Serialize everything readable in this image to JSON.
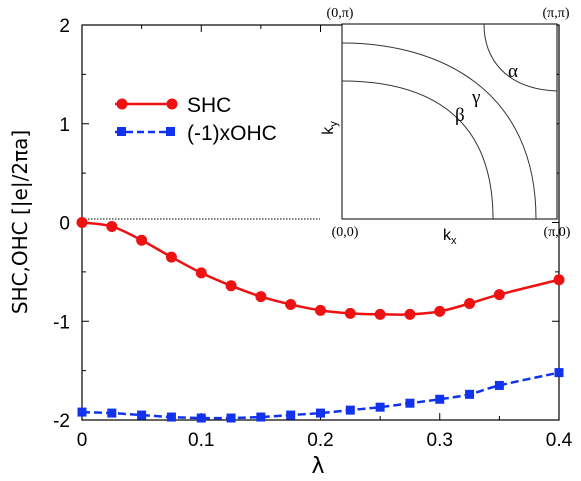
{
  "chart_data": {
    "type": "line",
    "xlabel": "λ",
    "ylabel": "SHC,OHC [|e|/2πa]",
    "xlim": [
      0,
      0.4
    ],
    "ylim": [
      -2,
      2
    ],
    "x_ticks": [
      "0",
      "0.1",
      "0.2",
      "0.3",
      "0.4"
    ],
    "x_tick_values": [
      0,
      0.1,
      0.2,
      0.3,
      0.4
    ],
    "y_ticks": [
      "2",
      "1",
      "0",
      "-1",
      "-2"
    ],
    "y_tick_values": [
      2,
      1,
      0,
      -1,
      -2
    ],
    "zero_line": true,
    "legend_position": "upper-left",
    "x": [
      0,
      0.025,
      0.05,
      0.075,
      0.1,
      0.125,
      0.15,
      0.175,
      0.2,
      0.225,
      0.25,
      0.275,
      0.3,
      0.325,
      0.35,
      0.4
    ],
    "series": [
      {
        "name": "SHC",
        "color": "#ee1111",
        "marker": "circle",
        "line": "solid",
        "values": [
          0.0,
          -0.04,
          -0.18,
          -0.35,
          -0.51,
          -0.64,
          -0.75,
          -0.83,
          -0.89,
          -0.92,
          -0.93,
          -0.93,
          -0.9,
          -0.82,
          -0.73,
          -0.58
        ]
      },
      {
        "name": "(-1)xOHC",
        "color": "#1133ee",
        "marker": "square",
        "line": "dashed",
        "values": [
          -1.92,
          -1.93,
          -1.95,
          -1.97,
          -1.98,
          -1.98,
          -1.97,
          -1.95,
          -1.93,
          -1.9,
          -1.87,
          -1.83,
          -1.79,
          -1.74,
          -1.65,
          -1.52
        ]
      }
    ],
    "inset": {
      "corners": {
        "top_left": "(0,π)",
        "top_right": "(π,π)",
        "bottom_left": "(0,0)",
        "bottom_right": "(π,0)"
      },
      "xlabel": "k",
      "xlabel_sub": "x",
      "ylabel": "k",
      "ylabel_sub": "y",
      "band_labels": [
        "α",
        "β",
        "γ"
      ]
    }
  }
}
